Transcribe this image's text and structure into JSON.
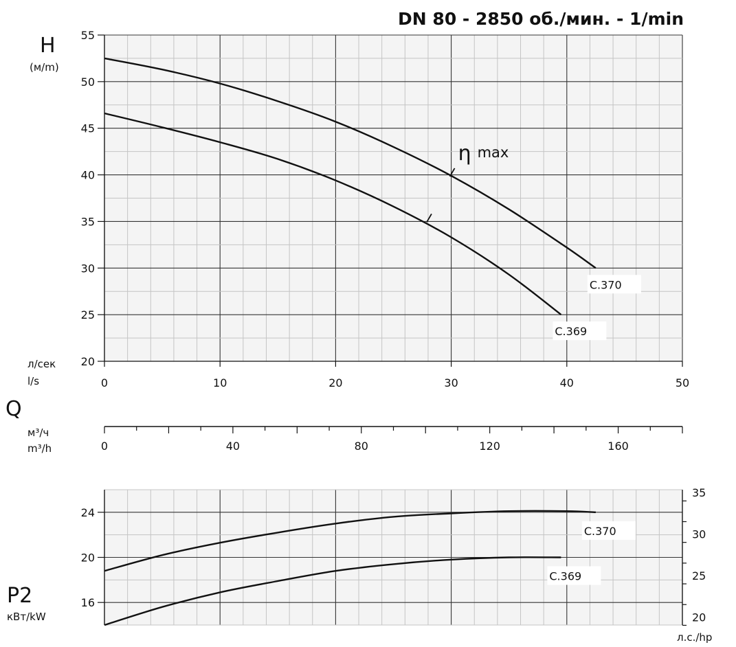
{
  "title": "DN 80 - 2850 об./мин. - 1/min",
  "chart_data": [
    {
      "id": "head",
      "type": "line",
      "ylabel": "H",
      "yunit": "(м/m)",
      "xunit": [
        "л/сек",
        "l/s"
      ],
      "xlim": [
        0,
        50
      ],
      "ylim": [
        20,
        55
      ],
      "xticks": [
        0,
        10,
        20,
        30,
        40,
        50
      ],
      "yticks": [
        20,
        25,
        30,
        35,
        40,
        45,
        50,
        55
      ],
      "grid": true,
      "annotation": "max",
      "annotation_symbol": "η",
      "series": [
        {
          "name": "C.370",
          "x": [
            0,
            5,
            10,
            15,
            20,
            25,
            30,
            35,
            40,
            42.5
          ],
          "y": [
            52.5,
            51.3,
            49.8,
            47.9,
            45.7,
            43.0,
            39.9,
            36.3,
            32.2,
            30.0
          ],
          "eta_max": [
            30,
            39.9
          ]
        },
        {
          "name": "C.369",
          "x": [
            0,
            5,
            10,
            15,
            20,
            25,
            30,
            35,
            39.5
          ],
          "y": [
            46.6,
            45.1,
            43.5,
            41.7,
            39.4,
            36.6,
            33.3,
            29.3,
            25.0
          ],
          "eta_max": [
            28,
            35.0
          ]
        }
      ]
    },
    {
      "id": "flow-m3h",
      "type": "axis",
      "ylabel": "Q",
      "unit": [
        "м³/ч",
        "m³/h"
      ],
      "lim": [
        0,
        180
      ],
      "ticks": [
        0,
        40,
        80,
        120,
        160
      ]
    },
    {
      "id": "power",
      "type": "line",
      "ylabel": "P2",
      "yunit": "кВт/kW",
      "y2unit": "л.с./hp",
      "xlim": [
        0,
        50
      ],
      "ylim": [
        14,
        26
      ],
      "yticks": [
        16,
        20,
        24
      ],
      "y2ticks": [
        20,
        25,
        30,
        35
      ],
      "grid": true,
      "series": [
        {
          "name": "C.370",
          "x": [
            0,
            5,
            10,
            15,
            20,
            25,
            30,
            35,
            40,
            42.5
          ],
          "y": [
            18.8,
            20.2,
            21.3,
            22.2,
            23.0,
            23.6,
            23.9,
            24.1,
            24.1,
            24.0
          ]
        },
        {
          "name": "C.369",
          "x": [
            0,
            5,
            10,
            15,
            20,
            25,
            30,
            35,
            39.5
          ],
          "y": [
            14.0,
            15.6,
            16.9,
            17.9,
            18.8,
            19.4,
            19.8,
            20.0,
            20.0
          ]
        }
      ]
    }
  ]
}
